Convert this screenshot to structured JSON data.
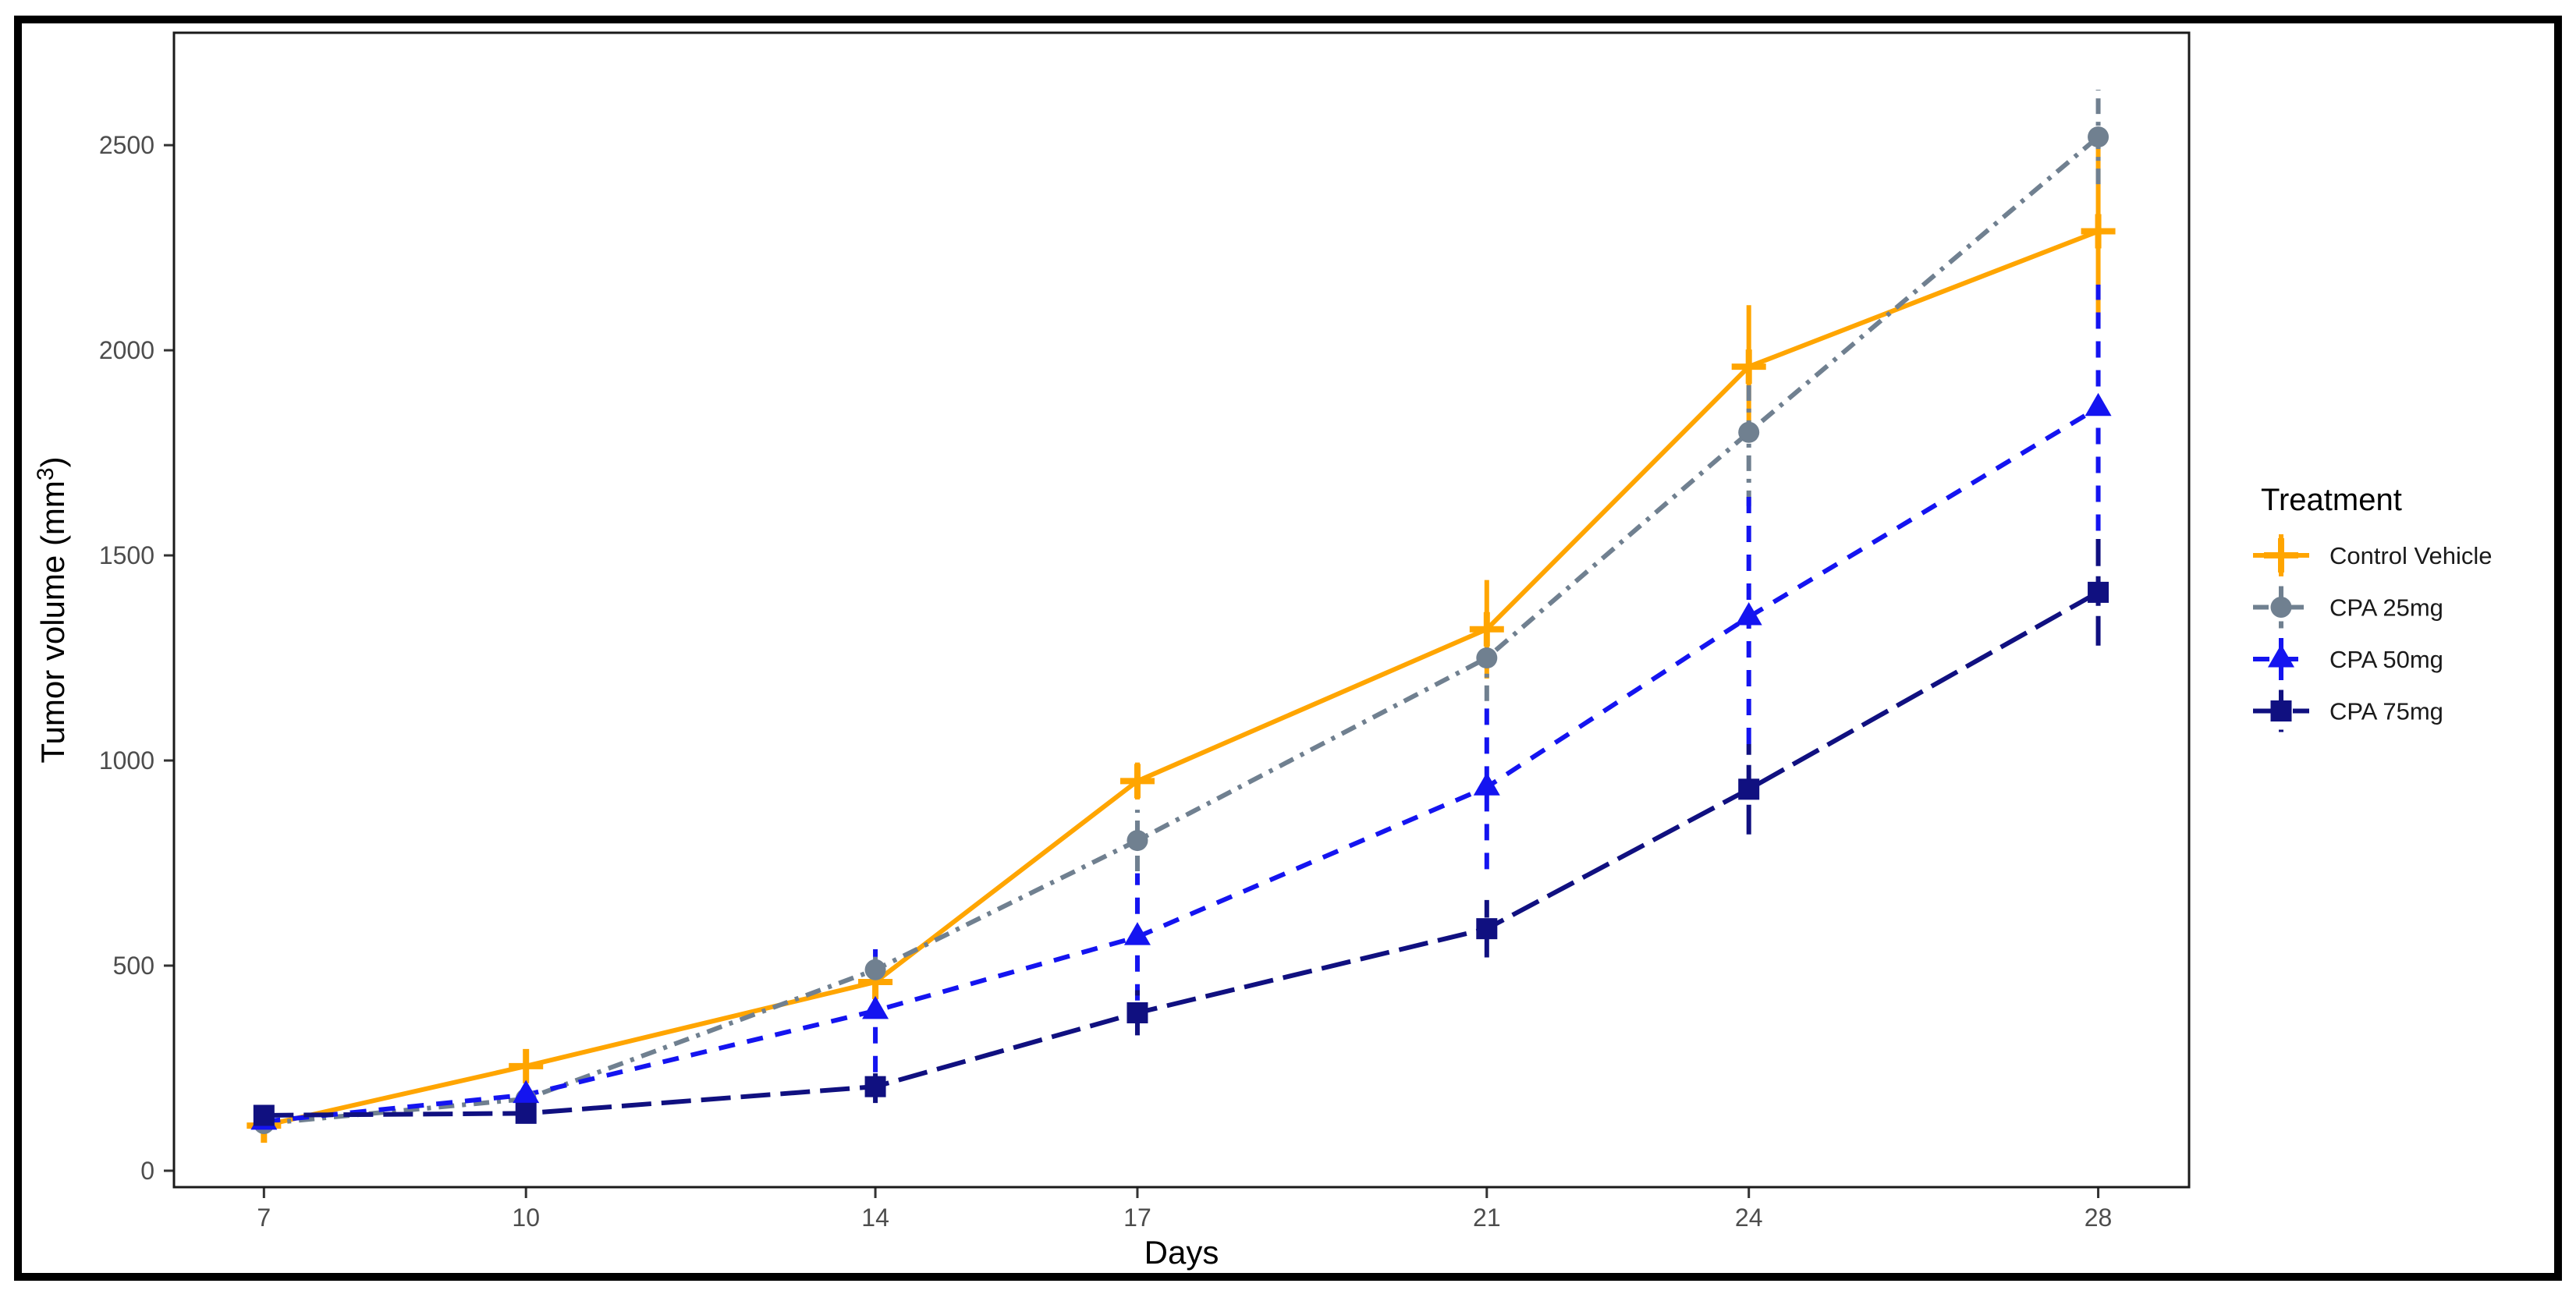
{
  "figure": {
    "background": "#FFFFFF",
    "outer_border_color": "#000000",
    "panel_border_color": "#1A1A1A",
    "axis_text_color": "#4D4D4D",
    "axis_title_color": "#000000"
  },
  "chart_data": {
    "type": "line",
    "title": "",
    "xlabel": "Days",
    "ylabel": "Tumor volume (mm³)",
    "ylabel_parts": {
      "prefix": "Tumor volume (mm",
      "sup": "3",
      "suffix": ")"
    },
    "x": [
      7,
      10,
      14,
      17,
      21,
      24,
      28
    ],
    "xtick_labels": [
      "7",
      "10",
      "14",
      "17",
      "21",
      "24",
      "28"
    ],
    "yticks": [
      0,
      500,
      1000,
      1500,
      2000,
      2500
    ],
    "ytick_labels": [
      "0",
      "500",
      "1000",
      "1500",
      "2000",
      "2500"
    ],
    "xlim": [
      5.97,
      29.04
    ],
    "ylim": [
      -40,
      2774
    ],
    "grid": false,
    "legend": {
      "title": "Treatment",
      "position": "right"
    },
    "series": [
      {
        "name": "Control Vehicle",
        "color": "#FFA500",
        "marker": "plus",
        "linetype": "solid",
        "values": [
          110,
          255,
          460,
          950,
          1320,
          1960,
          2290
        ],
        "errors": [
          20,
          30,
          40,
          45,
          120,
          150,
          215
        ]
      },
      {
        "name": "CPA 25mg",
        "color": "#708090",
        "marker": "circle",
        "linetype": "dotdash",
        "values": [
          115,
          175,
          490,
          805,
          1250,
          1800,
          2520
        ],
        "errors": [
          15,
          25,
          35,
          75,
          105,
          180,
          115
        ]
      },
      {
        "name": "CPA 50mg",
        "color": "#1414F0",
        "marker": "triangle",
        "linetype": "dashed",
        "values": [
          120,
          185,
          390,
          570,
          935,
          1350,
          1860
        ],
        "errors": [
          15,
          25,
          150,
          155,
          200,
          310,
          300
        ]
      },
      {
        "name": "CPA 75mg",
        "color": "#101080",
        "marker": "square",
        "linetype": "longdash",
        "values": [
          135,
          140,
          205,
          385,
          590,
          930,
          1410
        ],
        "errors": [
          20,
          25,
          40,
          55,
          70,
          110,
          130
        ]
      }
    ]
  }
}
